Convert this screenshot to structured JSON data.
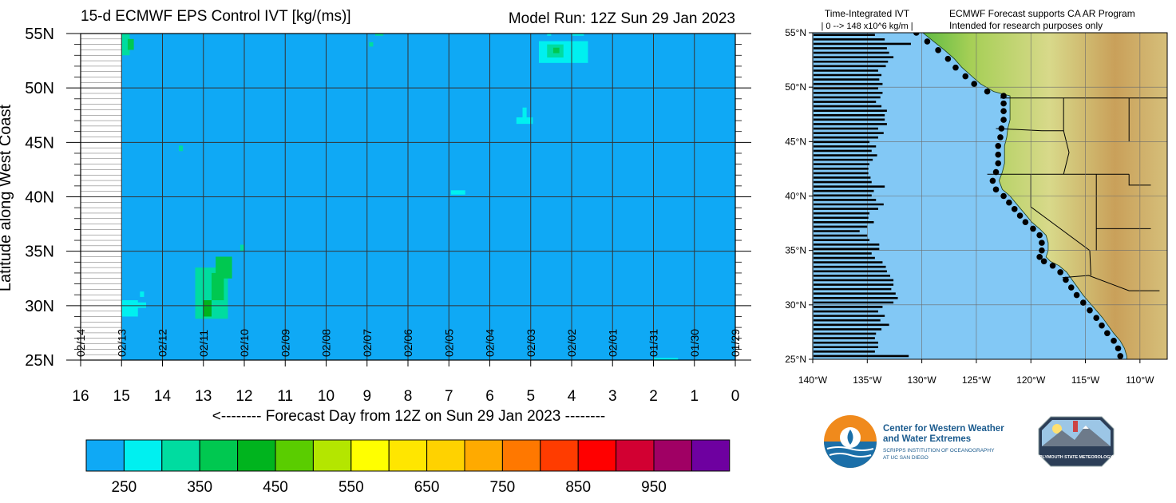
{
  "hovmoller": {
    "title": "15-d ECMWF EPS Control IVT [kg/(ms)]",
    "model_run": "Model Run: 12Z Sun 29 Jan 2023",
    "ylabel": "Latitude along West Coast",
    "xlabel": "<-------- Forecast Day from 12Z on Sun 29 Jan 2023 --------"
  },
  "chart_data": [
    {
      "type": "heatmap",
      "x_axis": {
        "range": [
          16,
          0
        ],
        "ticks": [
          16,
          15,
          14,
          13,
          12,
          11,
          10,
          9,
          8,
          7,
          6,
          5,
          4,
          3,
          2,
          1,
          0
        ]
      },
      "y_axis": {
        "range": [
          25,
          55
        ],
        "ticks": [
          25,
          30,
          35,
          40,
          45,
          50,
          55
        ],
        "tick_labels": [
          "25N",
          "30N",
          "35N",
          "40N",
          "45N",
          "50N",
          "55N"
        ]
      },
      "date_labels": [
        {
          "day": 16,
          "label": "02/14"
        },
        {
          "day": 15,
          "label": "02/13"
        },
        {
          "day": 14,
          "label": "02/12"
        },
        {
          "day": 13,
          "label": "02/11"
        },
        {
          "day": 12,
          "label": "02/10"
        },
        {
          "day": 11,
          "label": "02/09"
        },
        {
          "day": 10,
          "label": "02/08"
        },
        {
          "day": 9,
          "label": "02/07"
        },
        {
          "day": 8,
          "label": "02/06"
        },
        {
          "day": 7,
          "label": "02/05"
        },
        {
          "day": 6,
          "label": "02/04"
        },
        {
          "day": 5,
          "label": "02/03"
        },
        {
          "day": 4,
          "label": "02/02"
        },
        {
          "day": 3,
          "label": "02/01"
        },
        {
          "day": 2,
          "label": "01/31"
        },
        {
          "day": 1,
          "label": "01/30"
        },
        {
          "day": 0,
          "label": "01/29"
        }
      ],
      "background_value": 250,
      "data_extent_day": 15,
      "features": [
        {
          "day_start": 15.0,
          "day_end": 14.8,
          "lat_start": 53.0,
          "lat_end": 55.0,
          "value": 350
        },
        {
          "day_start": 14.85,
          "day_end": 14.7,
          "lat_start": 53.5,
          "lat_end": 54.5,
          "value": 400
        },
        {
          "day_start": 15.0,
          "day_end": 14.6,
          "lat_start": 29.0,
          "lat_end": 30.5,
          "value": 300
        },
        {
          "day_start": 14.8,
          "day_end": 14.4,
          "lat_start": 29.8,
          "lat_end": 30.3,
          "value": 300
        },
        {
          "day_start": 14.55,
          "day_end": 14.45,
          "lat_start": 30.8,
          "lat_end": 31.3,
          "value": 300
        },
        {
          "day_start": 13.2,
          "day_end": 12.4,
          "lat_start": 28.8,
          "lat_end": 33.5,
          "value": 350
        },
        {
          "day_start": 12.8,
          "day_end": 12.5,
          "lat_start": 30.5,
          "lat_end": 33.0,
          "value": 400
        },
        {
          "day_start": 13.0,
          "day_end": 12.8,
          "lat_start": 29.0,
          "lat_end": 30.5,
          "value": 450
        },
        {
          "day_start": 12.7,
          "day_end": 12.3,
          "lat_start": 32.5,
          "lat_end": 34.5,
          "value": 400
        },
        {
          "day_start": 12.1,
          "day_end": 12.0,
          "lat_start": 35.0,
          "lat_end": 35.6,
          "value": 350
        },
        {
          "day_start": 13.6,
          "day_end": 13.5,
          "lat_start": 44.2,
          "lat_end": 44.7,
          "value": 350
        },
        {
          "day_start": 8.8,
          "day_end": 8.6,
          "lat_start": 54.8,
          "lat_end": 55.0,
          "value": 350
        },
        {
          "day_start": 8.95,
          "day_end": 8.85,
          "lat_start": 53.8,
          "lat_end": 54.2,
          "value": 350
        },
        {
          "day_start": 6.95,
          "day_end": 6.6,
          "lat_start": 40.2,
          "lat_end": 40.6,
          "value": 300
        },
        {
          "day_start": 5.35,
          "day_end": 4.95,
          "lat_start": 46.7,
          "lat_end": 47.3,
          "value": 300
        },
        {
          "day_start": 5.2,
          "day_end": 5.1,
          "lat_start": 47.3,
          "lat_end": 48.2,
          "value": 300
        },
        {
          "day_start": 4.8,
          "day_end": 3.6,
          "lat_start": 52.3,
          "lat_end": 54.3,
          "value": 300
        },
        {
          "day_start": 4.6,
          "day_end": 4.2,
          "lat_start": 52.8,
          "lat_end": 54.0,
          "value": 350
        },
        {
          "day_start": 4.45,
          "day_end": 4.3,
          "lat_start": 53.2,
          "lat_end": 53.7,
          "value": 400
        },
        {
          "day_start": 4.6,
          "day_end": 4.5,
          "lat_start": 54.8,
          "lat_end": 55.0,
          "value": 300
        },
        {
          "day_start": 4.0,
          "day_end": 3.7,
          "lat_start": 54.8,
          "lat_end": 55.0,
          "value": 300
        },
        {
          "day_start": 2.0,
          "day_end": 1.4,
          "lat_start": 25.0,
          "lat_end": 25.2,
          "value": 300
        }
      ]
    },
    {
      "type": "bar",
      "orientation": "horizontal",
      "title": "Time-Integrated IVT",
      "subtitle": "| 0 --> 148 x10^6 kg/m |",
      "note_line1": "ECMWF Forecast supports CA AR Program",
      "note_line2": "Intended for research purposes only",
      "x_axis": {
        "range": [
          -140,
          -107.5
        ],
        "ticks": [
          -140,
          -135,
          -130,
          -125,
          -120,
          -115,
          -110
        ],
        "tick_labels": [
          "140°W",
          "135°W",
          "130°W",
          "125°W",
          "120°W",
          "115°W",
          "110°W"
        ]
      },
      "y_axis": {
        "range": [
          25,
          55
        ],
        "ticks": [
          25,
          30,
          35,
          40,
          45,
          50,
          55
        ],
        "tick_labels": [
          "25°N",
          "30°N",
          "35°N",
          "40°N",
          "45°N",
          "50°N",
          "55°N"
        ]
      },
      "bar_end_lon": [
        -131.2,
        -134.3,
        -134.0,
        -134.0,
        -134.3,
        -134.2,
        -133.7,
        -133.0,
        -133.8,
        -133.4,
        -134.0,
        -133.6,
        -132.6,
        -132.2,
        -132.4,
        -132.8,
        -132.6,
        -132.6,
        -132.9,
        -133.2,
        -133.3,
        -133.6,
        -134.3,
        -134.6,
        -133.9,
        -133.9,
        -134.8,
        -135.0,
        -135.7,
        -135.0,
        -134.4,
        -134.9,
        -134.8,
        -134.0,
        -133.5,
        -134.2,
        -134.6,
        -134.4,
        -133.4,
        -134.6,
        -134.7,
        -134.9,
        -134.9,
        -134.8,
        -134.5,
        -134.1,
        -134.6,
        -134.2,
        -134.8,
        -134.0,
        -133.5,
        -134.0,
        -133.2,
        -133.4,
        -133.4,
        -133.2,
        -133.7,
        -134.2,
        -133.8,
        -133.6,
        -134.0,
        -133.6,
        -133.9,
        -133.7,
        -134.0,
        -133.3,
        -133.1,
        -132.6,
        -133.0,
        -133.2,
        -131.0,
        -133.4,
        -134.3
      ],
      "coast_points": [
        [
          -130.5,
          55.0
        ],
        [
          -129.5,
          54.2
        ],
        [
          -128.5,
          53.4
        ],
        [
          -127.6,
          52.6
        ],
        [
          -126.9,
          51.8
        ],
        [
          -126.0,
          51.0
        ],
        [
          -125.2,
          50.3
        ],
        [
          -124.0,
          49.6
        ],
        [
          -122.5,
          49.2
        ],
        [
          -122.5,
          48.5
        ],
        [
          -122.5,
          47.8
        ],
        [
          -122.5,
          47.0
        ],
        [
          -122.7,
          46.2
        ],
        [
          -122.8,
          45.4
        ],
        [
          -123.0,
          44.6
        ],
        [
          -123.0,
          43.8
        ],
        [
          -123.0,
          43.0
        ],
        [
          -123.2,
          42.2
        ],
        [
          -123.5,
          41.4
        ],
        [
          -123.2,
          40.6
        ],
        [
          -122.5,
          40.0
        ],
        [
          -122.0,
          39.4
        ],
        [
          -121.5,
          38.8
        ],
        [
          -121.0,
          38.2
        ],
        [
          -120.5,
          37.6
        ],
        [
          -119.8,
          37.0
        ],
        [
          -119.2,
          36.4
        ],
        [
          -119.0,
          35.7
        ],
        [
          -119.0,
          35.0
        ],
        [
          -119.2,
          34.4
        ],
        [
          -118.8,
          34.0
        ],
        [
          -118.0,
          33.6
        ],
        [
          -117.3,
          33.0
        ],
        [
          -116.8,
          32.3
        ],
        [
          -116.3,
          31.6
        ],
        [
          -115.8,
          30.9
        ],
        [
          -115.2,
          30.2
        ],
        [
          -114.6,
          29.5
        ],
        [
          -114.0,
          28.8
        ],
        [
          -113.5,
          28.1
        ],
        [
          -113.0,
          27.4
        ],
        [
          -112.4,
          26.7
        ],
        [
          -112.0,
          26.0
        ],
        [
          -111.8,
          25.3
        ]
      ]
    }
  ],
  "colorbar": {
    "colors": [
      "#0fa9f5",
      "#00f0f0",
      "#00dca0",
      "#00c850",
      "#00b41e",
      "#5acd00",
      "#b4e600",
      "#ffff00",
      "#ffe600",
      "#ffd200",
      "#ffaa00",
      "#ff7800",
      "#ff3c00",
      "#ff0000",
      "#d20032",
      "#a00064",
      "#6e00a0"
    ],
    "tick_labels": [
      "250",
      "350",
      "450",
      "550",
      "650",
      "750",
      "850",
      "950"
    ]
  },
  "logos": {
    "cw3e_line1": "Center for Western Weather",
    "cw3e_line2": "and Water Extremes",
    "cw3e_line3": "SCRIPPS INSTITUTION OF OCEANOGRAPHY",
    "cw3e_line4": "AT UC SAN DIEGO",
    "psu_text": "PLYMOUTH STATE METEOROLOGY"
  },
  "colors": {
    "ocean": "#82c8f5",
    "land_low": "#46b43c",
    "land_mid": "#d2dc78",
    "land_high": "#c89650"
  }
}
